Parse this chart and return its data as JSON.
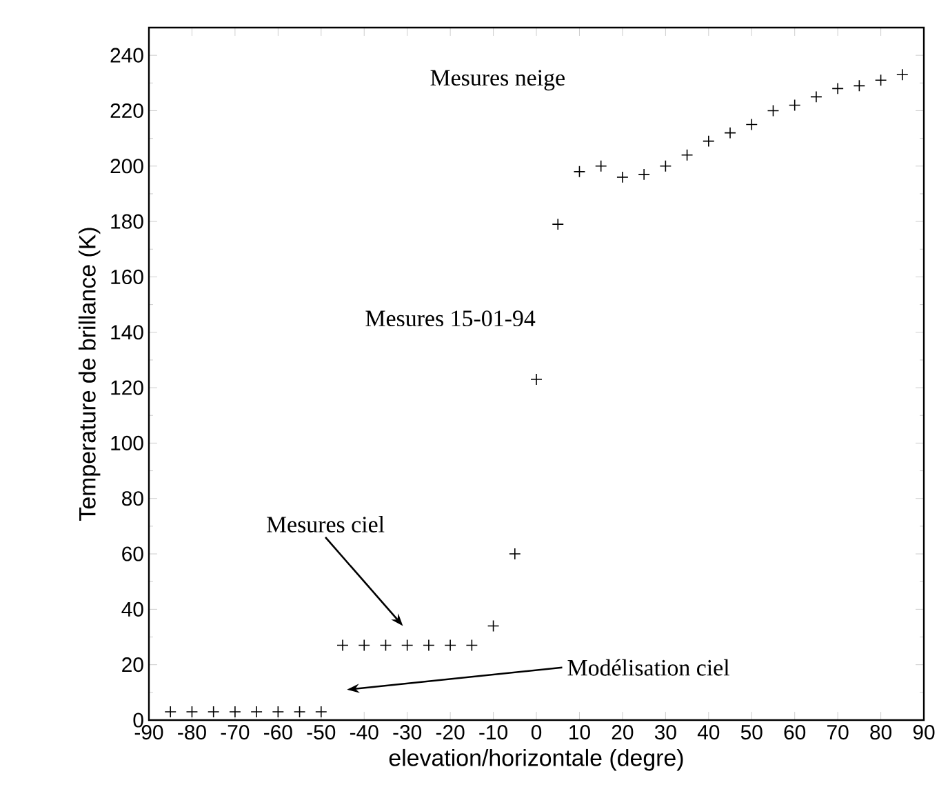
{
  "chart_data": {
    "type": "scatter",
    "xlabel": "elevation/horizontale (degre)",
    "ylabel": "Temperature de brillance (K)",
    "x": [
      -85,
      -80,
      -75,
      -70,
      -65,
      -60,
      -55,
      -50,
      -45,
      -40,
      -35,
      -30,
      -25,
      -20,
      -15,
      -10,
      -5,
      0,
      5,
      10,
      15,
      20,
      25,
      30,
      35,
      40,
      45,
      50,
      55,
      60,
      65,
      70,
      75,
      80,
      85
    ],
    "series": [
      {
        "color": "#000000",
        "values": [
          3,
          3,
          3,
          3,
          3,
          3,
          3,
          3,
          27,
          27,
          27,
          27,
          27,
          27,
          27,
          34,
          60,
          123,
          179,
          198,
          200,
          196,
          197,
          200,
          204,
          209,
          212,
          215,
          220,
          222,
          225,
          228,
          229,
          231,
          233
        ]
      }
    ],
    "marker": "cross",
    "xlim": [
      -90,
      90
    ],
    "ylim": [
      0,
      250
    ],
    "xticks": [
      -90,
      -80,
      -70,
      -60,
      -50,
      -40,
      -30,
      -20,
      -10,
      0,
      10,
      20,
      30,
      40,
      50,
      60,
      70,
      80,
      90
    ],
    "yticks": [
      0,
      20,
      40,
      60,
      80,
      100,
      120,
      140,
      160,
      180,
      200,
      220,
      240
    ],
    "annotations": [
      "Mesures neige",
      "Mesures 15-01-94",
      "Mesures ciel",
      "Modélisation ciel"
    ],
    "grid": false
  }
}
